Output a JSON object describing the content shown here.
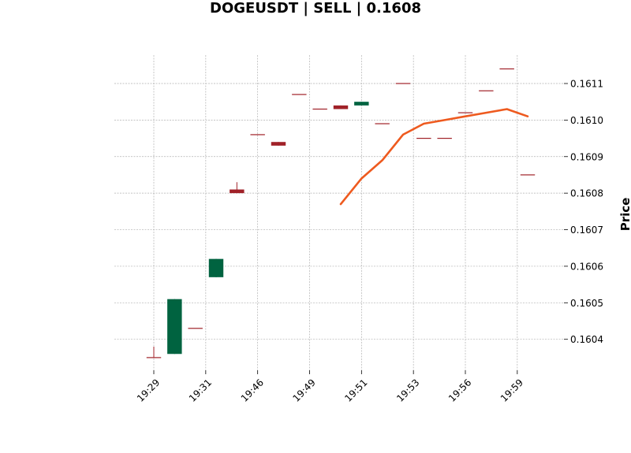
{
  "chart_data": {
    "type": "candlestick",
    "title": "DOGEUSDT | SELL | 0.1608",
    "ylabel": "Price",
    "xlabel": "",
    "ylim": [
      0.16031,
      0.16118
    ],
    "grid": true,
    "colors": {
      "up": "#006340",
      "down": "#a02128",
      "line": "#ee5a1f",
      "grid": "#b0b0b0"
    },
    "x_tick_labels": [
      "19:29",
      "19:31",
      "19:46",
      "19:49",
      "19:51",
      "19:53",
      "19:56",
      "19:59"
    ],
    "y_ticks": [
      0.1604,
      0.1605,
      0.1606,
      0.1607,
      0.1608,
      0.1609,
      0.161,
      0.1611
    ],
    "y_tick_labels": [
      "0.1604",
      "0.1605",
      "0.1606",
      "0.1607",
      "0.1608",
      "0.1609",
      "0.1610",
      "0.1611"
    ],
    "candles": [
      {
        "o": 0.16035,
        "h": 0.16038,
        "l": 0.16035,
        "c": 0.16035
      },
      {
        "o": 0.16036,
        "h": 0.16051,
        "l": 0.16036,
        "c": 0.16051
      },
      {
        "o": 0.16043,
        "h": 0.16043,
        "l": 0.16043,
        "c": 0.16043
      },
      {
        "o": 0.16057,
        "h": 0.16062,
        "l": 0.16057,
        "c": 0.16062
      },
      {
        "o": 0.16081,
        "h": 0.16083,
        "l": 0.1608,
        "c": 0.1608
      },
      {
        "o": 0.16096,
        "h": 0.16096,
        "l": 0.16096,
        "c": 0.16096
      },
      {
        "o": 0.16094,
        "h": 0.16094,
        "l": 0.16093,
        "c": 0.16093
      },
      {
        "o": 0.16107,
        "h": 0.16107,
        "l": 0.16107,
        "c": 0.16107
      },
      {
        "o": 0.16103,
        "h": 0.16103,
        "l": 0.16103,
        "c": 0.16103
      },
      {
        "o": 0.16104,
        "h": 0.16104,
        "l": 0.16103,
        "c": 0.16103
      },
      {
        "o": 0.16104,
        "h": 0.16105,
        "l": 0.16104,
        "c": 0.16105
      },
      {
        "o": 0.16099,
        "h": 0.16099,
        "l": 0.16099,
        "c": 0.16099
      },
      {
        "o": 0.1611,
        "h": 0.1611,
        "l": 0.1611,
        "c": 0.1611
      },
      {
        "o": 0.16095,
        "h": 0.16095,
        "l": 0.16095,
        "c": 0.16095
      },
      {
        "o": 0.16095,
        "h": 0.16095,
        "l": 0.16095,
        "c": 0.16095
      },
      {
        "o": 0.16102,
        "h": 0.16102,
        "l": 0.16102,
        "c": 0.16102
      },
      {
        "o": 0.16108,
        "h": 0.16108,
        "l": 0.16108,
        "c": 0.16108
      },
      {
        "o": 0.16114,
        "h": 0.16114,
        "l": 0.16114,
        "c": 0.16114
      },
      {
        "o": 0.16085,
        "h": 0.16085,
        "l": 0.16085,
        "c": 0.16085
      }
    ],
    "line_series": {
      "start_index": 9,
      "values": [
        0.16077,
        0.16084,
        0.16089,
        0.16096,
        0.16099,
        0.161,
        0.16101,
        0.16102,
        0.16103,
        0.16101
      ]
    }
  }
}
